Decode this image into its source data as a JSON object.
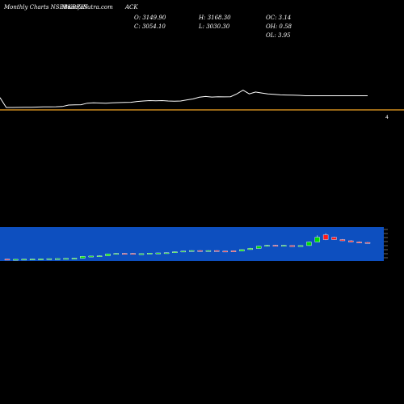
{
  "header": {
    "source": "Monthly Charts NSEBKBP.IN",
    "source_overlay": "MunafaSutra.com",
    "symbol": "ACK",
    "open": "O: 3149.90",
    "close": "C: 3054.10",
    "high": "H: 3168.30",
    "low": "L: 3030.30",
    "oc": "OC: 3.14",
    "oh": "OH: 0.58",
    "ol": "OL: 3.95"
  },
  "colors": {
    "background": "#000000",
    "price_line": "#ffffff",
    "baseline": "#f5a623",
    "candle_panel": "#0d4fbf",
    "up_candle": "#00e000",
    "down_candle": "#ff1a1a"
  },
  "chart_data": [
    {
      "type": "line",
      "x": [
        0,
        1,
        2,
        3,
        4,
        5,
        6,
        7,
        8,
        9,
        10,
        11,
        12,
        13,
        14,
        15,
        16,
        17,
        18,
        19,
        20,
        21,
        22,
        23,
        24,
        25,
        26,
        27,
        28,
        29,
        30,
        31,
        32,
        33,
        34,
        35,
        36,
        37,
        38,
        39,
        40,
        41,
        42,
        43,
        44,
        45,
        46,
        47,
        48,
        49,
        50,
        51,
        52,
        53,
        54,
        55,
        56,
        57,
        58,
        59
      ],
      "values": [
        2000,
        1470,
        1470,
        1475,
        1480,
        1485,
        1490,
        1500,
        1505,
        1510,
        1520,
        1600,
        1610,
        1620,
        1700,
        1720,
        1710,
        1700,
        1720,
        1730,
        1740,
        1750,
        1790,
        1820,
        1840,
        1830,
        1840,
        1820,
        1810,
        1820,
        1880,
        1930,
        2020,
        2060,
        2030,
        2050,
        2040,
        2050,
        2200,
        2400,
        2200,
        2300,
        2250,
        2200,
        2180,
        2150,
        2140,
        2130,
        2120,
        2100,
        2100,
        2100,
        2100,
        2100,
        2100,
        2100,
        2100,
        2100,
        2100,
        2100
      ],
      "tick_labels": [
        "4"
      ]
    },
    {
      "type": "candlestick",
      "x": [
        0,
        1,
        2,
        3,
        4,
        5,
        6,
        7,
        8,
        9,
        10,
        11,
        12,
        13,
        14,
        15,
        16,
        17,
        18,
        19,
        20,
        21,
        22,
        23,
        24,
        25,
        26,
        27,
        28,
        29,
        30,
        31,
        32,
        33,
        34,
        35,
        36,
        37,
        38,
        39,
        40,
        41,
        42,
        43
      ],
      "open": [
        1480,
        1470,
        1475,
        1480,
        1485,
        1490,
        1500,
        1505,
        1510,
        1520,
        1600,
        1610,
        1620,
        1700,
        1720,
        1720,
        1700,
        1710,
        1720,
        1740,
        1750,
        1790,
        1820,
        1840,
        1830,
        1840,
        1820,
        1830,
        1820,
        1880,
        1930,
        2020,
        2060,
        2050,
        2050,
        2030,
        2050,
        2200,
        2500,
        2400,
        2300,
        2250,
        2200,
        2180
      ],
      "close": [
        1470,
        1475,
        1480,
        1485,
        1490,
        1500,
        1505,
        1510,
        1520,
        1600,
        1610,
        1620,
        1700,
        1720,
        1710,
        1700,
        1710,
        1730,
        1740,
        1750,
        1790,
        1820,
        1840,
        1830,
        1840,
        1820,
        1810,
        1820,
        1880,
        1930,
        2020,
        2060,
        2030,
        2060,
        2040,
        2050,
        2200,
        2400,
        2300,
        2300,
        2250,
        2200,
        2180,
        2150
      ],
      "high": [
        1490,
        1480,
        1485,
        1490,
        1495,
        1505,
        1510,
        1520,
        1530,
        1610,
        1620,
        1640,
        1710,
        1730,
        1730,
        1730,
        1720,
        1740,
        1750,
        1760,
        1800,
        1830,
        1850,
        1850,
        1850,
        1850,
        1830,
        1840,
        1890,
        1950,
        2040,
        2080,
        2080,
        2070,
        2060,
        2060,
        2220,
        2480,
        2560,
        2420,
        2320,
        2270,
        2220,
        2200
      ],
      "low": [
        1460,
        1465,
        1470,
        1475,
        1480,
        1485,
        1495,
        1500,
        1505,
        1515,
        1590,
        1600,
        1615,
        1690,
        1700,
        1690,
        1690,
        1700,
        1715,
        1735,
        1745,
        1785,
        1815,
        1820,
        1820,
        1810,
        1800,
        1810,
        1815,
        1875,
        1925,
        2010,
        2020,
        2030,
        2030,
        2020,
        2040,
        2190,
        2280,
        2290,
        2240,
        2190,
        2170,
        2140
      ]
    }
  ]
}
